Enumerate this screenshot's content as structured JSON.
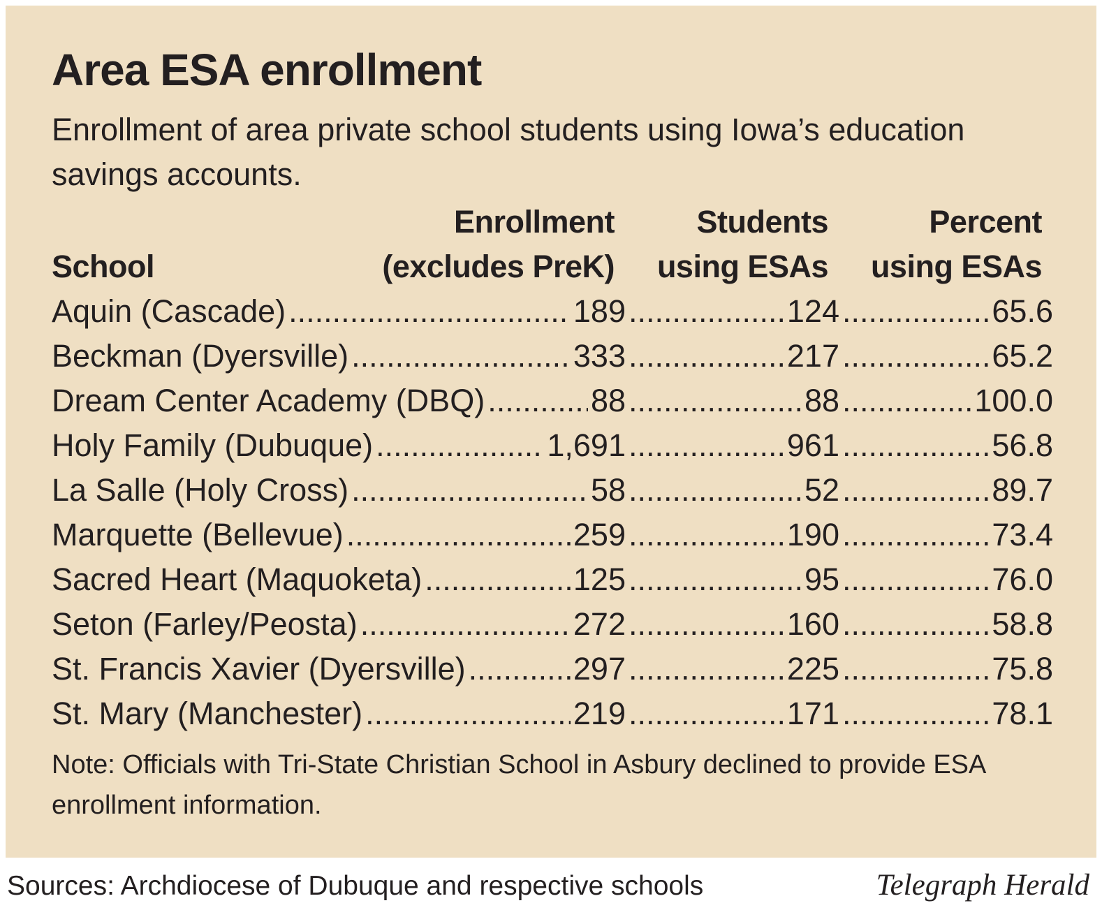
{
  "chart_data": {
    "type": "table",
    "title": "Area ESA enrollment",
    "subtitle": "Enrollment of area private school students using Iowa’s education savings accounts.",
    "columns": {
      "school": "School",
      "enrollment_line1": "Enrollment",
      "enrollment_line2": "(excludes PreK)",
      "students_line1": "Students",
      "students_line2": "using ESAs",
      "percent_line1": "Percent",
      "percent_line2": "using ESAs"
    },
    "rows": [
      {
        "school": "Aquin (Cascade)",
        "enrollment": "189",
        "students": "124",
        "percent": "65.6"
      },
      {
        "school": "Beckman (Dyersville)",
        "enrollment": "333",
        "students": "217",
        "percent": "65.2"
      },
      {
        "school": "Dream Center Academy (DBQ)",
        "enrollment": "88",
        "students": "88",
        "percent": "100.0"
      },
      {
        "school": "Holy Family (Dubuque)",
        "enrollment": "1,691",
        "students": "961",
        "percent": "56.8"
      },
      {
        "school": "La Salle (Holy Cross)",
        "enrollment": "58",
        "students": "52",
        "percent": "89.7"
      },
      {
        "school": "Marquette (Bellevue)",
        "enrollment": "259",
        "students": "190",
        "percent": "73.4"
      },
      {
        "school": "Sacred Heart (Maquoketa)",
        "enrollment": "125",
        "students": "95",
        "percent": "76.0"
      },
      {
        "school": "Seton (Farley/Peosta)",
        "enrollment": "272",
        "students": "160",
        "percent": "58.8"
      },
      {
        "school": "St. Francis Xavier (Dyersville)",
        "enrollment": "297",
        "students": "225",
        "percent": "75.8"
      },
      {
        "school": "St. Mary (Manchester)",
        "enrollment": "219",
        "students": "171",
        "percent": "78.1"
      }
    ],
    "note": "Note: Officials with Tri-State Christian School in Asbury declined to provide ESA enrollment information.",
    "source": "Sources: Archdiocese of Dubuque and respective schools",
    "credit": "Telegraph Herald"
  },
  "colors": {
    "panel_background": "#efdfc3",
    "text": "#231f20"
  }
}
